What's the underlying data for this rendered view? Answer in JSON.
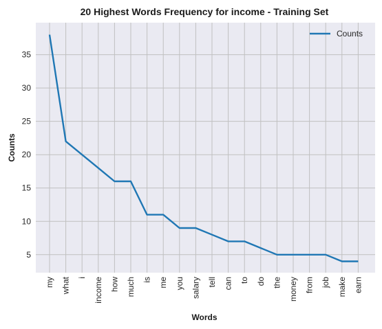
{
  "chart_data": {
    "type": "line",
    "title": "20 Highest Words Frequency for income - Training Set",
    "xlabel": "Words",
    "ylabel": "Counts",
    "categories": [
      "my",
      "what",
      "i",
      "income",
      "how",
      "much",
      "is",
      "me",
      "you",
      "salary",
      "tell",
      "can",
      "to",
      "do",
      "the",
      "money",
      "from",
      "job",
      "make",
      "earn"
    ],
    "series": [
      {
        "name": "Counts",
        "values": [
          38,
          22,
          20,
          18,
          16,
          16,
          11,
          11,
          9,
          9,
          8,
          7,
          7,
          6,
          5,
          5,
          5,
          5,
          4,
          4
        ]
      }
    ],
    "ylim": [
      2.3,
      39.8
    ],
    "yticks": [
      5,
      10,
      15,
      20,
      25,
      30,
      35
    ],
    "grid": true,
    "legend_position": "top-right",
    "colors": {
      "line": "#1f77b4",
      "plot_background": "#eaeaf2",
      "grid": "#c0c0c0"
    }
  }
}
